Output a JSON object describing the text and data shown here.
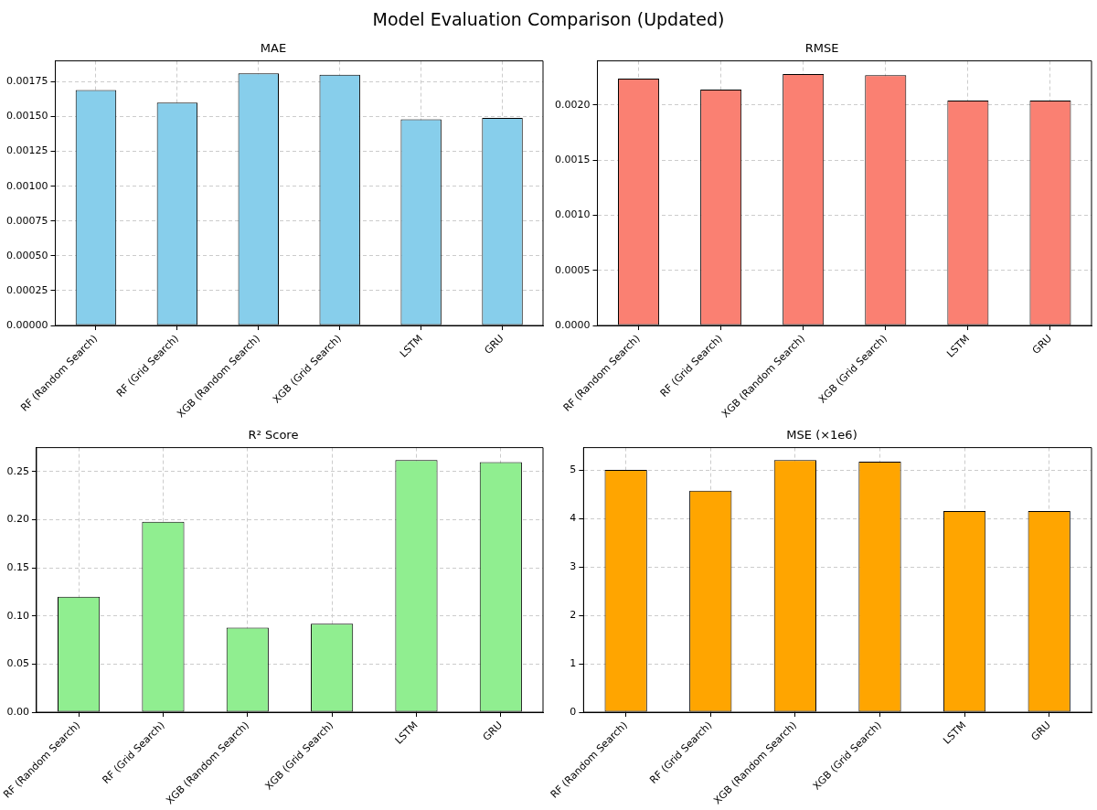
{
  "chart_data": [
    {
      "type": "other",
      "title": "Model Evaluation Comparison (Updated)"
    },
    {
      "type": "bar",
      "title": "MAE",
      "categories": [
        "RF (Random Search)",
        "RF (Grid Search)",
        "XGB (Random Search)",
        "XGB (Grid Search)",
        "LSTM",
        "GRU"
      ],
      "values": [
        0.00169,
        0.0016,
        0.00181,
        0.0018,
        0.00148,
        0.00149
      ],
      "color": "#87ceeb",
      "ylim": [
        0,
        0.0019
      ],
      "yticks": [
        {
          "value": 0,
          "label": "0.00000"
        },
        0.00025,
        {
          "value": 0.0005,
          "label": "0.00050"
        },
        0.00075,
        {
          "value": 0.001,
          "label": "0.00100"
        },
        0.00125,
        {
          "value": 0.0015,
          "label": "0.00150"
        },
        0.00175
      ],
      "grid": true
    },
    {
      "type": "bar",
      "title": "RMSE",
      "categories": [
        "RF (Random Search)",
        "RF (Grid Search)",
        "XGB (Random Search)",
        "XGB (Grid Search)",
        "LSTM",
        "GRU"
      ],
      "values": [
        0.00224,
        0.00214,
        0.00228,
        0.00227,
        0.00204,
        0.00204
      ],
      "color": "#fa8072",
      "ylim": [
        0,
        0.0024
      ],
      "yticks": [
        {
          "value": 0,
          "label": "0.0000"
        },
        0.0005,
        {
          "value": 0.001,
          "label": "0.0010"
        },
        0.0015,
        {
          "value": 0.002,
          "label": "0.0020"
        }
      ],
      "grid": true
    },
    {
      "type": "bar",
      "title": "R² Score",
      "categories": [
        "RF (Random Search)",
        "RF (Grid Search)",
        "XGB (Random Search)",
        "XGB (Grid Search)",
        "LSTM",
        "GRU"
      ],
      "values": [
        0.12,
        0.198,
        0.088,
        0.092,
        0.262,
        0.26
      ],
      "color": "#90ee90",
      "ylim": [
        0,
        0.275
      ],
      "yticks": [
        {
          "value": 0,
          "label": "0.00"
        },
        0.05,
        {
          "value": 0.1,
          "label": "0.10"
        },
        0.15,
        {
          "value": 0.2,
          "label": "0.20"
        },
        0.25
      ],
      "grid": true
    },
    {
      "type": "bar",
      "title": "MSE (×1e6)",
      "categories": [
        "RF (Random Search)",
        "RF (Grid Search)",
        "XGB (Random Search)",
        "XGB (Grid Search)",
        "LSTM",
        "GRU"
      ],
      "values": [
        5.01,
        4.58,
        5.21,
        5.18,
        4.16,
        4.16
      ],
      "color": "#ffa500",
      "ylim": [
        0,
        5.47
      ],
      "yticks": [
        0,
        1,
        2,
        3,
        4,
        5
      ],
      "grid": true
    }
  ]
}
